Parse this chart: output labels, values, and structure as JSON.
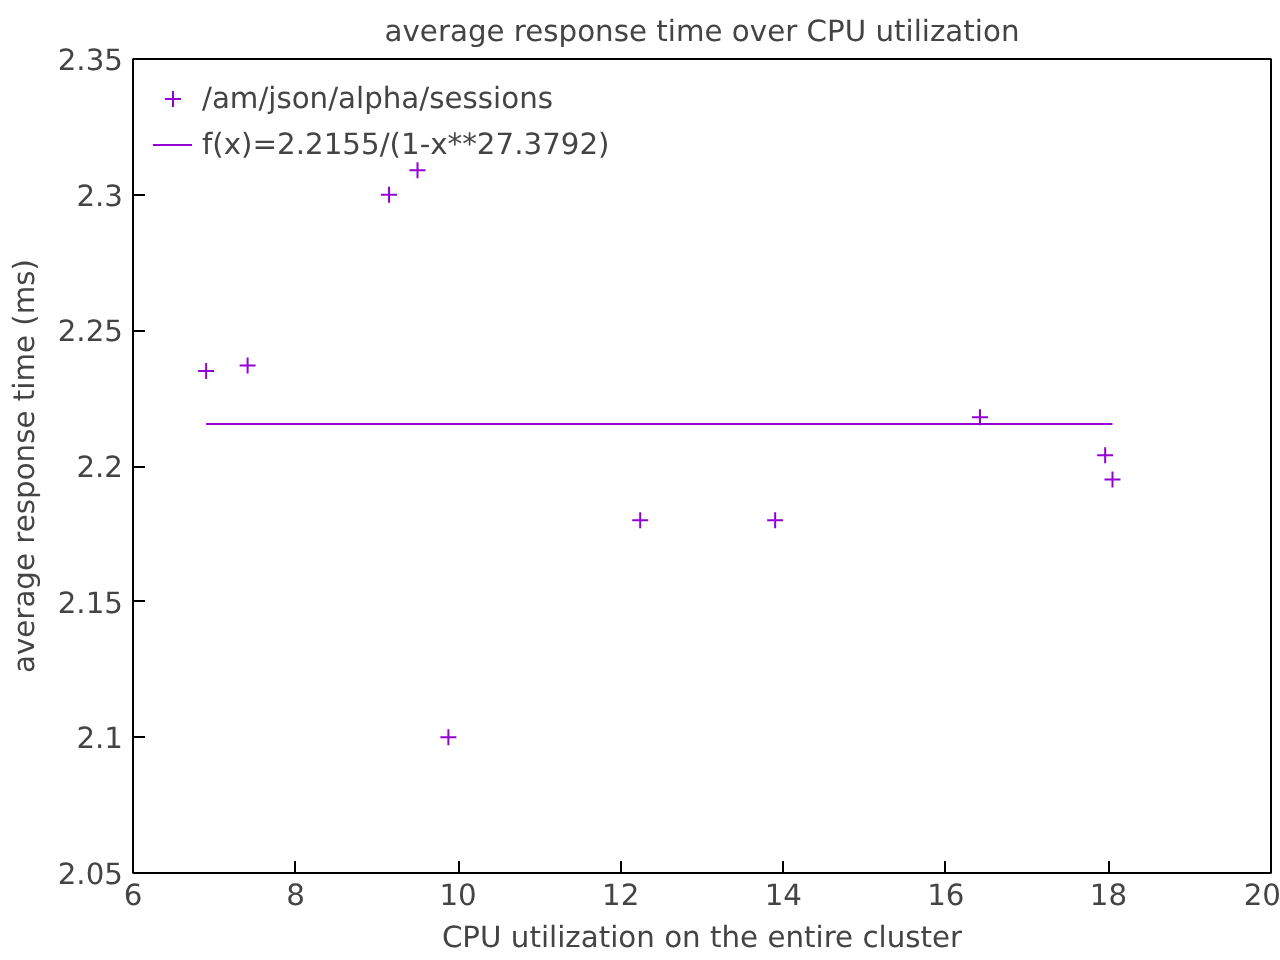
{
  "chart_data": {
    "type": "scatter",
    "title": "average response time over CPU utilization",
    "xlabel": "CPU utilization on the entire cluster",
    "ylabel": "average response time (ms)",
    "xlim": [
      6,
      20
    ],
    "xticks": [
      6,
      8,
      10,
      12,
      14,
      16,
      18,
      20
    ],
    "ylim": [
      2.05,
      2.35
    ],
    "yticks": [
      2.05,
      2.1,
      2.15,
      2.2,
      2.25,
      2.3,
      2.35
    ],
    "grid": false,
    "legend": "top left",
    "series": [
      {
        "name": "/am/json/alpha/sessions",
        "marker": "cross",
        "color": "#9400d3",
        "x": [
          6.9,
          7.41,
          9.15,
          9.5,
          9.88,
          12.24,
          13.9,
          16.42,
          17.96,
          18.05
        ],
        "values": [
          2.235,
          2.237,
          2.3,
          2.309,
          2.1,
          2.18,
          2.18,
          2.218,
          2.204,
          2.195
        ]
      },
      {
        "name": "f(x)=2.2155/(1-x**27.3792)",
        "type": "line",
        "color": "#9400d3",
        "line_style": "solid",
        "x": [
          6.9,
          18.05
        ],
        "values": [
          2.2155,
          2.2155
        ]
      }
    ]
  }
}
